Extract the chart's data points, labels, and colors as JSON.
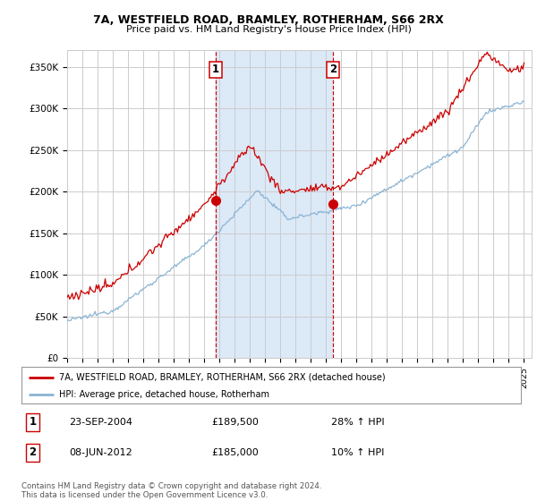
{
  "title1": "7A, WESTFIELD ROAD, BRAMLEY, ROTHERHAM, S66 2RX",
  "title2": "Price paid vs. HM Land Registry's House Price Index (HPI)",
  "ylabel_ticks": [
    "£0",
    "£50K",
    "£100K",
    "£150K",
    "£200K",
    "£250K",
    "£300K",
    "£350K"
  ],
  "ylim": [
    0,
    370000
  ],
  "xlim_start": 1995.0,
  "xlim_end": 2025.5,
  "background_color": "#ffffff",
  "plot_bg_color": "#ffffff",
  "grid_color": "#cccccc",
  "shade_color": "#dce9f7",
  "hpi_color": "#8ab4d4",
  "price_color": "#cc0000",
  "sale1_date": 2004.73,
  "sale1_price": 189500,
  "sale2_date": 2012.44,
  "sale2_price": 185000,
  "legend_line1": "7A, WESTFIELD ROAD, BRAMLEY, ROTHERHAM, S66 2RX (detached house)",
  "legend_line2": "HPI: Average price, detached house, Rotherham",
  "annotation1_date": "23-SEP-2004",
  "annotation1_price": "£189,500",
  "annotation1_hpi": "28% ↑ HPI",
  "annotation2_date": "08-JUN-2012",
  "annotation2_price": "£185,000",
  "annotation2_hpi": "10% ↑ HPI",
  "footnote": "Contains HM Land Registry data © Crown copyright and database right 2024.\nThis data is licensed under the Open Government Licence v3.0."
}
